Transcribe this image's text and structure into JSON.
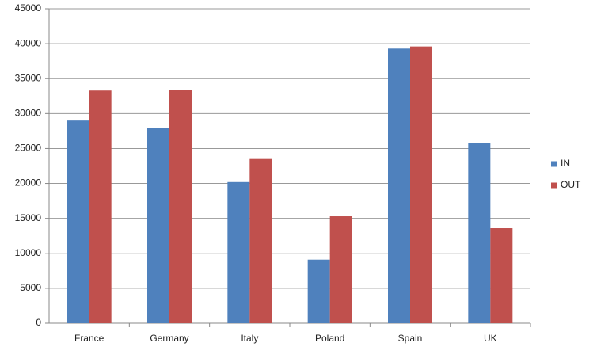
{
  "chart_data": {
    "type": "bar",
    "categories": [
      "France",
      "Germany",
      "Italy",
      "Poland",
      "Spain",
      "UK"
    ],
    "series": [
      {
        "name": "IN",
        "color": "#4f81bd",
        "values": [
          29000,
          27900,
          20200,
          9100,
          39300,
          25800
        ]
      },
      {
        "name": "OUT",
        "color": "#c0504d",
        "values": [
          33300,
          33400,
          23500,
          15300,
          39600,
          13600
        ]
      }
    ],
    "ylim": [
      0,
      45000
    ],
    "yticks": [
      0,
      5000,
      10000,
      15000,
      20000,
      25000,
      30000,
      35000,
      40000,
      45000
    ],
    "grid": true,
    "legend": "right"
  }
}
